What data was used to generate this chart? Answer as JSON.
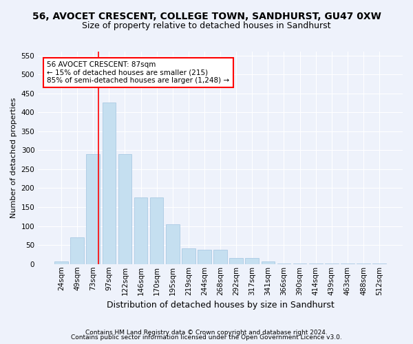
{
  "title": "56, AVOCET CRESCENT, COLLEGE TOWN, SANDHURST, GU47 0XW",
  "subtitle": "Size of property relative to detached houses in Sandhurst",
  "xlabel": "Distribution of detached houses by size in Sandhurst",
  "ylabel": "Number of detached properties",
  "bar_color": "#c5dff0",
  "bar_edge_color": "#a0c4e0",
  "categories": [
    "24sqm",
    "49sqm",
    "73sqm",
    "97sqm",
    "122sqm",
    "146sqm",
    "170sqm",
    "195sqm",
    "219sqm",
    "244sqm",
    "268sqm",
    "292sqm",
    "317sqm",
    "341sqm",
    "366sqm",
    "390sqm",
    "414sqm",
    "439sqm",
    "463sqm",
    "488sqm",
    "512sqm"
  ],
  "values": [
    7,
    70,
    290,
    425,
    290,
    175,
    175,
    105,
    42,
    38,
    38,
    15,
    15,
    7,
    2,
    2,
    2,
    2,
    2,
    2,
    2
  ],
  "ylim": [
    0,
    560
  ],
  "yticks": [
    0,
    50,
    100,
    150,
    200,
    250,
    300,
    350,
    400,
    450,
    500,
    550
  ],
  "property_line_x": 2.33,
  "annotation_line1": "56 AVOCET CRESCENT: 87sqm",
  "annotation_line2": "← 15% of detached houses are smaller (215)",
  "annotation_line3": "85% of semi-detached houses are larger (1,248) →",
  "annotation_box_color": "white",
  "annotation_box_edge_color": "red",
  "vline_color": "red",
  "footer1": "Contains HM Land Registry data © Crown copyright and database right 2024.",
  "footer2": "Contains public sector information licensed under the Open Government Licence v3.0.",
  "background_color": "#eef2fb",
  "grid_color": "white",
  "title_fontsize": 10,
  "subtitle_fontsize": 9,
  "ylabel_fontsize": 8,
  "xlabel_fontsize": 9,
  "tick_fontsize": 7.5,
  "annotation_fontsize": 7.5,
  "footer_fontsize": 6.5
}
